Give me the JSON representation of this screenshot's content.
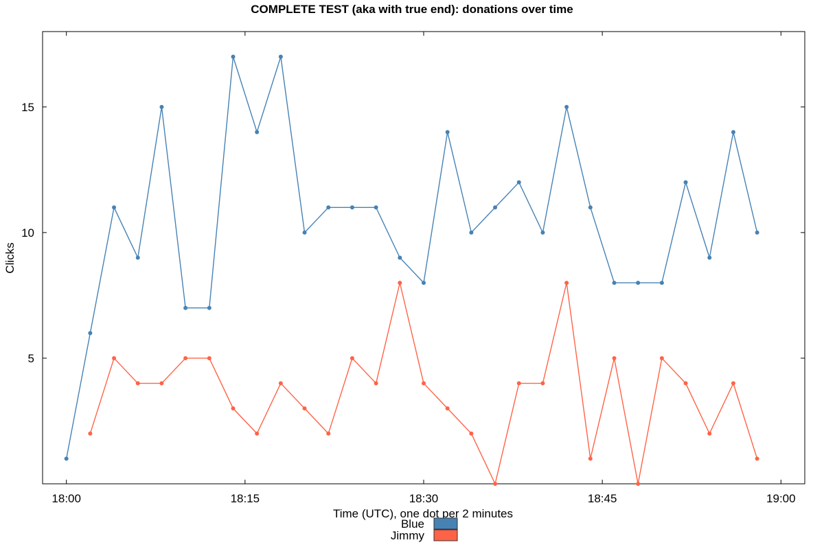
{
  "chart_data": {
    "type": "line",
    "title": "COMPLETE TEST (aka with true end): donations over time",
    "xlabel": "Time (UTC), one dot per 2 minutes",
    "ylabel": "Clicks",
    "x_ticks": [
      "18:00",
      "18:15",
      "18:30",
      "18:45",
      "19:00"
    ],
    "y_ticks": [
      "5",
      "10",
      "15"
    ],
    "xlim_minutes": [
      -2,
      62
    ],
    "ylim": [
      0,
      18
    ],
    "legend_position": "bottom-center",
    "grid": false,
    "series": [
      {
        "name": "Blue",
        "color": "#4682b4",
        "x_minutes": [
          0,
          2,
          4,
          6,
          8,
          10,
          12,
          14,
          16,
          18,
          20,
          22,
          24,
          26,
          28,
          30,
          32,
          34,
          36,
          38,
          40,
          42,
          44,
          46,
          48,
          50,
          52,
          54,
          56,
          58
        ],
        "values": [
          1,
          6,
          11,
          9,
          15,
          7,
          7,
          17,
          14,
          17,
          10,
          11,
          11,
          11,
          9,
          8,
          14,
          10,
          11,
          12,
          10,
          15,
          11,
          8,
          8,
          8,
          12,
          9,
          14,
          10
        ]
      },
      {
        "name": "Jimmy",
        "color": "#ff6347",
        "x_minutes": [
          2,
          4,
          6,
          8,
          10,
          12,
          14,
          16,
          18,
          20,
          22,
          24,
          26,
          28,
          30,
          32,
          34,
          36,
          38,
          40,
          42,
          44,
          46,
          48,
          50,
          52,
          54,
          56,
          58
        ],
        "values": [
          2,
          5,
          4,
          4,
          5,
          5,
          3,
          2,
          4,
          3,
          2,
          5,
          4,
          8,
          4,
          3,
          2,
          0,
          4,
          4,
          8,
          1,
          5,
          0,
          5,
          4,
          2,
          4,
          1
        ]
      }
    ]
  }
}
